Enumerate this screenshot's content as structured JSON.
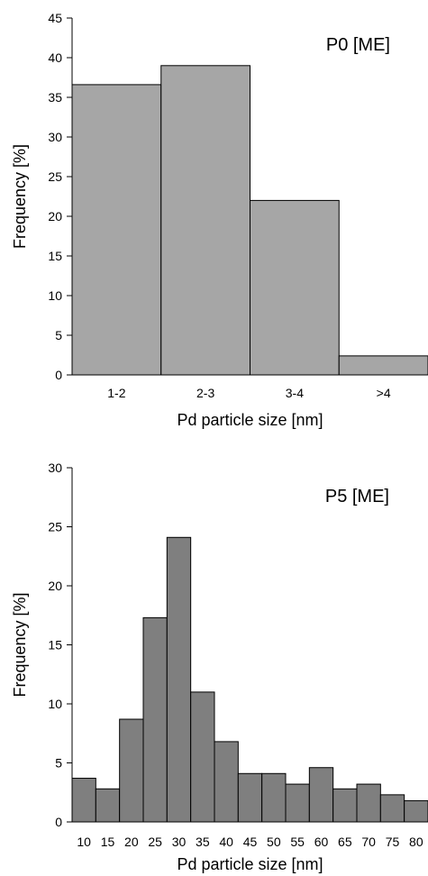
{
  "chart_data": [
    {
      "type": "bar",
      "title": "P0 [ME]",
      "xlabel": "Pd particle size [nm]",
      "ylabel": "Frequency [%]",
      "categories": [
        "1-2",
        "2-3",
        "3-4",
        ">4"
      ],
      "values": [
        36.6,
        39.0,
        22.0,
        2.4
      ],
      "ylim": [
        0,
        45
      ],
      "yticks": [
        0,
        5,
        10,
        15,
        20,
        25,
        30,
        35,
        40,
        45
      ],
      "bar_color": "#a6a6a6",
      "grid": false
    },
    {
      "type": "bar",
      "title": "P5 [ME]",
      "xlabel": "Pd particle size [nm]",
      "ylabel": "Frequency [%]",
      "categories": [
        "10",
        "15",
        "20",
        "25",
        "30",
        "35",
        "40",
        "45",
        "50",
        "55",
        "60",
        "65",
        "70",
        "75",
        "80"
      ],
      "values": [
        3.7,
        2.8,
        8.7,
        17.3,
        24.1,
        11.0,
        6.8,
        4.1,
        4.1,
        3.2,
        4.6,
        2.8,
        3.2,
        2.3,
        1.8
      ],
      "ylim": [
        0,
        30
      ],
      "yticks": [
        0,
        5,
        10,
        15,
        20,
        25,
        30
      ],
      "bar_color": "#7f7f7f",
      "grid": false
    }
  ]
}
